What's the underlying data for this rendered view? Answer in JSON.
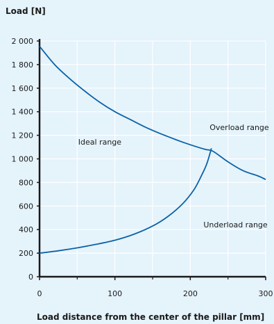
{
  "chart_data": {
    "type": "line",
    "ylabel": "Load [N]",
    "xlabel": "Load distance from the center of the pillar [mm]",
    "xlim": [
      0,
      300
    ],
    "ylim": [
      0,
      2000
    ],
    "x_ticks": [
      0,
      100,
      200,
      300
    ],
    "x_tick_labels": [
      "0",
      "100",
      "200",
      "300"
    ],
    "y_ticks": [
      0,
      200,
      400,
      600,
      800,
      1000,
      1200,
      1400,
      1600,
      1800,
      2000
    ],
    "y_tick_labels": [
      "0",
      "200",
      "400",
      "600",
      "800",
      "1 000",
      "1 200",
      "1 400",
      "1 600",
      "1 800",
      "2 000"
    ],
    "grid": true,
    "colors": {
      "background": "#e5f3fb",
      "line": "#0a62a8",
      "grid": "#ffffff",
      "axis": "#1a1a1a"
    },
    "series": [
      {
        "x": [
          0,
          20,
          40,
          60,
          80,
          100,
          120,
          140,
          160,
          180,
          200,
          220,
          230,
          250,
          270,
          290,
          300
        ],
        "values": [
          1955,
          1800,
          1680,
          1575,
          1480,
          1400,
          1335,
          1270,
          1215,
          1165,
          1120,
          1080,
          1065,
          975,
          900,
          855,
          825
        ]
      },
      {
        "x": [
          0,
          25,
          50,
          75,
          100,
          125,
          150,
          170,
          190,
          205,
          215,
          222,
          228
        ],
        "values": [
          200,
          220,
          245,
          275,
          310,
          360,
          430,
          510,
          620,
          740,
          860,
          960,
          1090
        ]
      }
    ],
    "annotations": [
      {
        "text": "Ideal range",
        "x": 80,
        "y": 1120
      },
      {
        "text": "Overload range",
        "x": 265,
        "y": 1245
      },
      {
        "text": "Underload range",
        "x": 260,
        "y": 420
      }
    ]
  }
}
